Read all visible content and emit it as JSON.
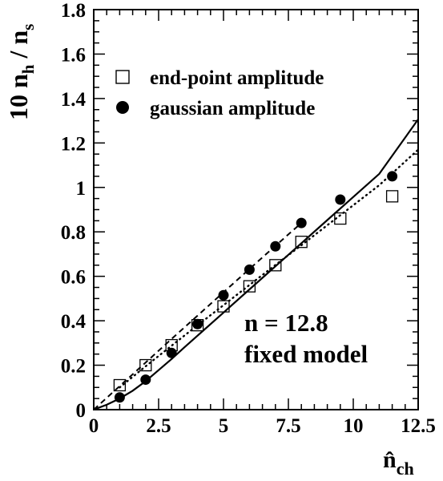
{
  "chart_data": {
    "type": "scatter",
    "xlabel": {
      "main": "n̂",
      "sub": "ch"
    },
    "ylabel": {
      "prefix": "10 n",
      "sub1": "h",
      "mid": " / n",
      "sub2": "s"
    },
    "xlim": [
      0,
      12.5
    ],
    "ylim": [
      0,
      1.8
    ],
    "x_ticks": [
      0,
      2.5,
      5,
      7.5,
      10,
      12.5
    ],
    "x_tick_labels": [
      "0",
      "2.5",
      "5",
      "7.5",
      "10",
      "12.5"
    ],
    "y_ticks": [
      0,
      0.2,
      0.4,
      0.6,
      0.8,
      1.0,
      1.2,
      1.4,
      1.6,
      1.8
    ],
    "y_tick_labels": [
      "0",
      "0.2",
      "0.4",
      "0.6",
      "0.8",
      "1",
      "1.2",
      "1.4",
      "1.6",
      "1.8"
    ],
    "grid": false,
    "legend_position": "top-left",
    "series": [
      {
        "name": "end-point amplitude",
        "marker": "open-square",
        "x": [
          1,
          2,
          3,
          4,
          5,
          6,
          7,
          8,
          9.5,
          11.5
        ],
        "y": [
          0.11,
          0.2,
          0.29,
          0.38,
          0.465,
          0.555,
          0.65,
          0.755,
          0.86,
          0.96
        ]
      },
      {
        "name": "gaussian amplitude",
        "marker": "filled-circle",
        "x": [
          1,
          2,
          3,
          4,
          5,
          6,
          7,
          8,
          9.5,
          11.5
        ],
        "y": [
          0.055,
          0.135,
          0.255,
          0.385,
          0.515,
          0.63,
          0.735,
          0.84,
          0.945,
          1.05
        ]
      }
    ],
    "curves": [
      {
        "style": "solid",
        "x": [
          0,
          0.5,
          1,
          1.5,
          2,
          2.5,
          3,
          3.5,
          4,
          5,
          6,
          7,
          8,
          9,
          10,
          11,
          12.5
        ],
        "y": [
          0,
          0.022,
          0.05,
          0.085,
          0.128,
          0.178,
          0.228,
          0.281,
          0.333,
          0.437,
          0.541,
          0.645,
          0.749,
          0.853,
          0.957,
          1.061,
          1.306
        ]
      },
      {
        "style": "dashed",
        "x": [
          0,
          1,
          2,
          3,
          4,
          5,
          6,
          7,
          8
        ],
        "y": [
          0,
          0.106,
          0.212,
          0.318,
          0.423,
          0.528,
          0.633,
          0.737,
          0.84
        ]
      },
      {
        "style": "dotted",
        "x": [
          1,
          2,
          3,
          4,
          5,
          6,
          7,
          8,
          9,
          10,
          11,
          12.5
        ],
        "y": [
          0.1,
          0.195,
          0.288,
          0.38,
          0.47,
          0.561,
          0.651,
          0.74,
          0.83,
          0.92,
          1.01,
          1.17
        ]
      }
    ],
    "annotations": [
      "n = 12.8",
      "fixed model"
    ]
  }
}
